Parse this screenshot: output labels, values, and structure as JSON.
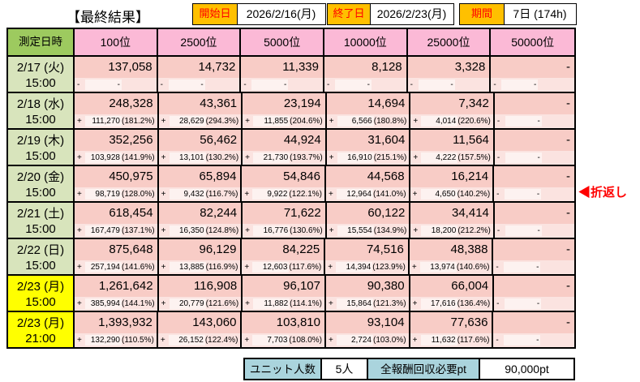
{
  "header": {
    "title": "【最終結果】",
    "start_label": "開始日",
    "start_value": "2026/2/16(月)",
    "end_label": "終了日",
    "end_value": "2026/2/23(月)",
    "period_label": "期間",
    "period_value": "7日 (174h)"
  },
  "table": {
    "datetime_header": "測定日時",
    "rank_headers": [
      "100位",
      "2500位",
      "5000位",
      "10000位",
      "25000位",
      "50000位"
    ],
    "rows": [
      {
        "date": "2/17 (火)",
        "time": "15:00",
        "highlight": false,
        "values": [
          "137,058",
          "14,732",
          "11,339",
          "8,128",
          "3,328",
          "-"
        ],
        "deltas": [
          {
            "plus": "-",
            "value": "-",
            "pct": ""
          },
          {
            "plus": "-",
            "value": "-",
            "pct": ""
          },
          {
            "plus": "-",
            "value": "-",
            "pct": ""
          },
          {
            "plus": "-",
            "value": "-",
            "pct": ""
          },
          {
            "plus": "-",
            "value": "-",
            "pct": ""
          },
          {
            "plus": "-",
            "value": "-",
            "pct": ""
          }
        ]
      },
      {
        "date": "2/18 (水)",
        "time": "15:00",
        "highlight": false,
        "values": [
          "248,328",
          "43,361",
          "23,194",
          "14,694",
          "7,342",
          "-"
        ],
        "deltas": [
          {
            "plus": "+",
            "value": "111,270",
            "pct": "(181.2%)"
          },
          {
            "plus": "+",
            "value": "28,629",
            "pct": "(294.3%)"
          },
          {
            "plus": "+",
            "value": "11,855",
            "pct": "(204.6%)"
          },
          {
            "plus": "+",
            "value": "6,566",
            "pct": "(180.8%)"
          },
          {
            "plus": "+",
            "value": "4,014",
            "pct": "(220.6%)"
          },
          {
            "plus": "-",
            "value": "-",
            "pct": ""
          }
        ]
      },
      {
        "date": "2/19 (木)",
        "time": "15:00",
        "highlight": false,
        "values": [
          "352,256",
          "56,462",
          "44,924",
          "31,604",
          "11,564",
          "-"
        ],
        "deltas": [
          {
            "plus": "+",
            "value": "103,928",
            "pct": "(141.9%)"
          },
          {
            "plus": "+",
            "value": "13,101",
            "pct": "(130.2%)"
          },
          {
            "plus": "+",
            "value": "21,730",
            "pct": "(193.7%)"
          },
          {
            "plus": "+",
            "value": "16,910",
            "pct": "(215.1%)"
          },
          {
            "plus": "+",
            "value": "4,222",
            "pct": "(157.5%)"
          },
          {
            "plus": "-",
            "value": "-",
            "pct": ""
          }
        ]
      },
      {
        "date": "2/20 (金)",
        "time": "15:00",
        "highlight": false,
        "values": [
          "450,975",
          "65,894",
          "54,846",
          "44,568",
          "16,214",
          "-"
        ],
        "deltas": [
          {
            "plus": "+",
            "value": "98,719",
            "pct": "(128.0%)"
          },
          {
            "plus": "+",
            "value": "9,432",
            "pct": "(116.7%)"
          },
          {
            "plus": "+",
            "value": "9,922",
            "pct": "(122.1%)"
          },
          {
            "plus": "+",
            "value": "12,964",
            "pct": "(141.0%)"
          },
          {
            "plus": "+",
            "value": "4,650",
            "pct": "(140.2%)"
          },
          {
            "plus": "-",
            "value": "-",
            "pct": ""
          }
        ]
      },
      {
        "date": "2/21 (土)",
        "time": "15:00",
        "highlight": false,
        "values": [
          "618,454",
          "82,244",
          "71,622",
          "60,122",
          "34,414",
          "-"
        ],
        "deltas": [
          {
            "plus": "+",
            "value": "167,479",
            "pct": "(137.1%)"
          },
          {
            "plus": "+",
            "value": "16,350",
            "pct": "(124.8%)"
          },
          {
            "plus": "+",
            "value": "16,776",
            "pct": "(130.6%)"
          },
          {
            "plus": "+",
            "value": "15,554",
            "pct": "(134.9%)"
          },
          {
            "plus": "+",
            "value": "18,200",
            "pct": "(212.2%)"
          },
          {
            "plus": "-",
            "value": "-",
            "pct": ""
          }
        ]
      },
      {
        "date": "2/22 (日)",
        "time": "15:00",
        "highlight": false,
        "values": [
          "875,648",
          "96,129",
          "84,225",
          "74,516",
          "48,388",
          "-"
        ],
        "deltas": [
          {
            "plus": "+",
            "value": "257,194",
            "pct": "(141.6%)"
          },
          {
            "plus": "+",
            "value": "13,885",
            "pct": "(116.9%)"
          },
          {
            "plus": "+",
            "value": "12,603",
            "pct": "(117.6%)"
          },
          {
            "plus": "+",
            "value": "14,394",
            "pct": "(123.9%)"
          },
          {
            "plus": "+",
            "value": "13,974",
            "pct": "(140.6%)"
          },
          {
            "plus": "-",
            "value": "-",
            "pct": ""
          }
        ]
      },
      {
        "date": "2/23 (月)",
        "time": "15:00",
        "highlight": true,
        "values": [
          "1,261,642",
          "116,908",
          "96,107",
          "90,380",
          "66,004",
          "-"
        ],
        "deltas": [
          {
            "plus": "+",
            "value": "385,994",
            "pct": "(144.1%)"
          },
          {
            "plus": "+",
            "value": "20,779",
            "pct": "(121.6%)"
          },
          {
            "plus": "+",
            "value": "11,882",
            "pct": "(114.1%)"
          },
          {
            "plus": "+",
            "value": "15,864",
            "pct": "(121.3%)"
          },
          {
            "plus": "+",
            "value": "17,616",
            "pct": "(136.4%)"
          },
          {
            "plus": "-",
            "value": "-",
            "pct": ""
          }
        ]
      },
      {
        "date": "2/23 (月)",
        "time": "21:00",
        "highlight": true,
        "values": [
          "1,393,932",
          "143,060",
          "103,810",
          "93,104",
          "77,636",
          "-"
        ],
        "deltas": [
          {
            "plus": "+",
            "value": "132,290",
            "pct": "(110.5%)"
          },
          {
            "plus": "+",
            "value": "26,152",
            "pct": "(122.4%)"
          },
          {
            "plus": "+",
            "value": "7,703",
            "pct": "(108.0%)"
          },
          {
            "plus": "+",
            "value": "2,724",
            "pct": "(103.0%)"
          },
          {
            "plus": "+",
            "value": "11,632",
            "pct": "(117.6%)"
          },
          {
            "plus": "-",
            "value": "-",
            "pct": ""
          }
        ]
      }
    ]
  },
  "annotation": {
    "turnaround_label": "◀折返し"
  },
  "footer": {
    "unit_label": "ユニット人数",
    "unit_value": "5人",
    "reward_label": "全報酬回収必要pt",
    "reward_value": "90,000pt"
  },
  "colors": {
    "pink": "#FBB9D6",
    "salmon": "#F8CCC6",
    "delta_bg": "#FBE3E0",
    "delta_hl": "#FDF2F0",
    "green_dark": "#9DCA5F",
    "green_light": "#D8E4BC",
    "yellow": "#FFFF00",
    "orange": "#FFC000",
    "blue": "#AAD4DD",
    "red": "#FF0000"
  }
}
